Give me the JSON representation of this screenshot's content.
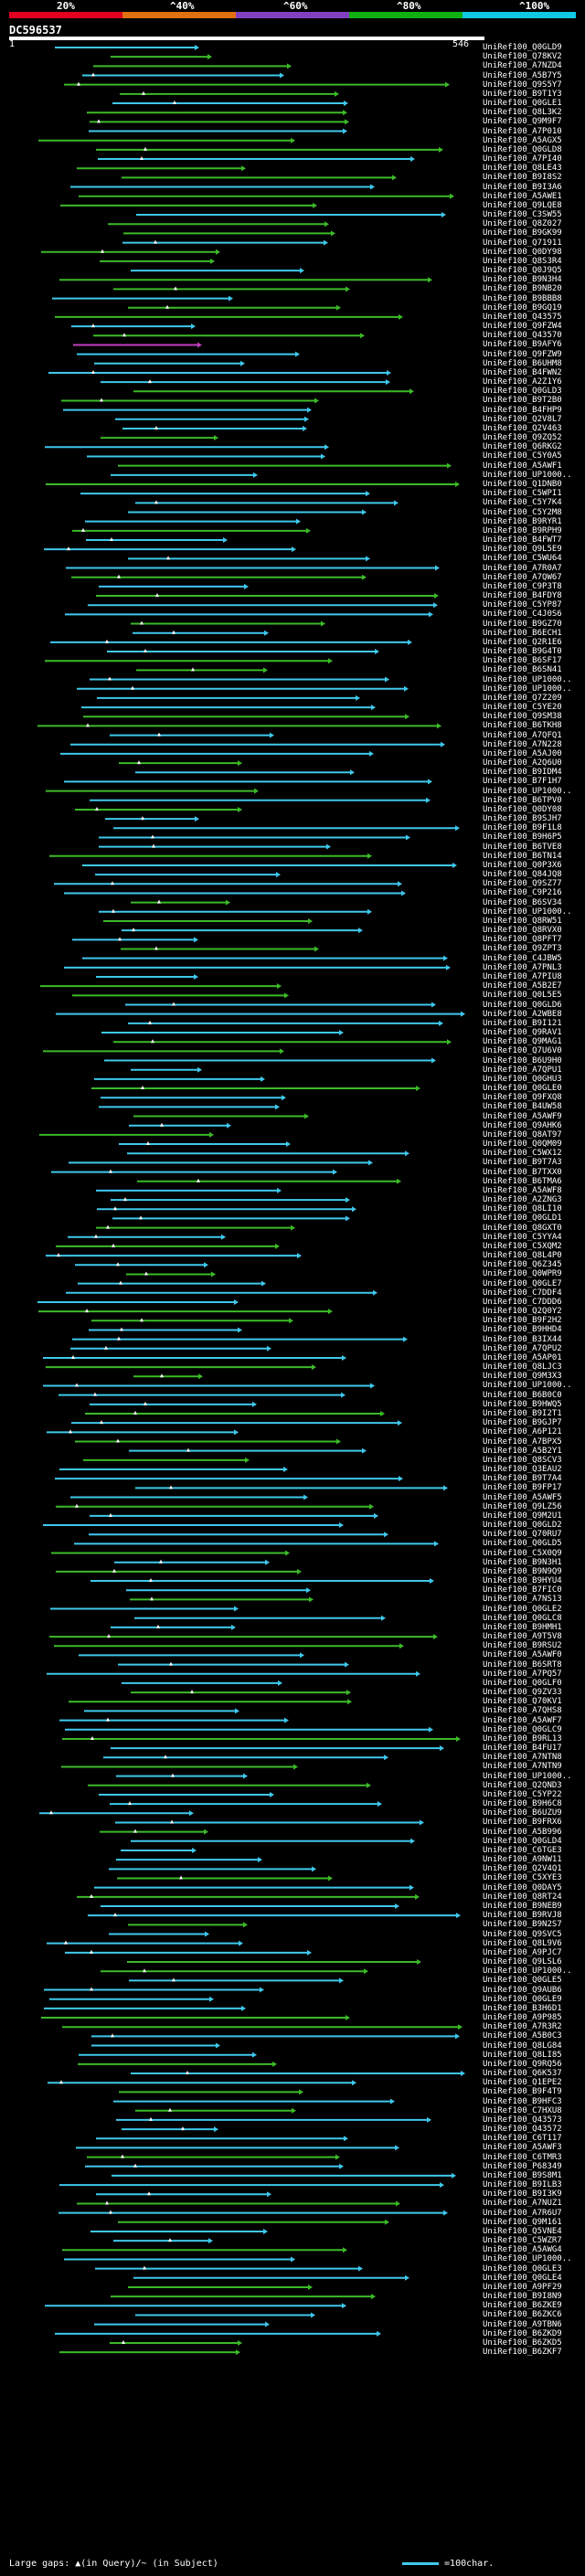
{
  "legend": {
    "stops": [
      {
        "label": "20%",
        "color": "#e00020"
      },
      {
        "label": "^40%",
        "color": "#e07010"
      },
      {
        "label": "^60%",
        "color": "#8040c0"
      },
      {
        "label": "^80%",
        "color": "#10b010"
      },
      {
        "label": "^100%",
        "color": "#10c8e0"
      }
    ]
  },
  "query": {
    "name": "DC596537",
    "start": "1",
    "end": "546"
  },
  "colors": {
    "cyan": "#3fc8ec",
    "green": "#3cba28",
    "magenta": "#c040c0"
  },
  "hits": [
    "UniRef100_Q0GLD9",
    "UniRef100_Q78KV2",
    "UniRef100_A7NZD4",
    "UniRef100_A5B7Y5",
    "UniRef100_Q9S5Y7",
    "UniRef100_B9T1Y3",
    "UniRef100_Q0GLE1",
    "UniRef100_Q8L3K2",
    "UniRef100_Q9M9F7",
    "UniRef100_A7P010",
    "UniRef100_A5AGX5",
    "UniRef100_Q0GLD8",
    "UniRef100_A7PI40",
    "UniRef100_Q8LE43",
    "UniRef100_B9I8S2",
    "UniRef100_B9I3A6",
    "UniRef100_A5AWE1",
    "UniRef100_Q9LQE8",
    "UniRef100_C3SW55",
    "UniRef100_Q8Z027",
    "UniRef100_B9GK99",
    "UniRef100_Q71911",
    "UniRef100_Q0DY98",
    "UniRef100_Q8S3R4",
    "UniRef100_Q0J9Q5",
    "UniRef100_B9N3H4",
    "UniRef100_B9NB20",
    "UniRef100_B9BBB8",
    "UniRef100_B9GQ19",
    "UniRef100_Q43575",
    "UniRef100_Q9FZW4",
    "UniRef100_Q43570",
    "UniRef100_B9AFY6",
    "UniRef100_Q9FZW9",
    "UniRef100_B6UHM8",
    "UniRef100_B4FWN2",
    "UniRef100_A2Z1Y6",
    "UniRef100_Q0GLD3",
    "UniRef100_B9T2B0",
    "UniRef100_B4FHP9",
    "UniRef100_Q2V8L7",
    "UniRef100_Q2V463",
    "UniRef100_Q9ZQ52",
    "UniRef100_Q6RKG2",
    "UniRef100_C5Y0A5",
    "UniRef100_A5AWF1",
    "UniRef100_UP1000..",
    "UniRef100_Q1DNB0",
    "UniRef100_C5WPI1",
    "UniRef100_C5Y7K4",
    "UniRef100_C5Y2M8",
    "UniRef100_B9RYR1",
    "UniRef100_B9RPH9",
    "UniRef100_B4FWT7",
    "UniRef100_Q9L5E9",
    "UniRef100_C5WU64",
    "UniRef100_A7R0A7",
    "UniRef100_A7QW67",
    "UniRef100_C9P3T8",
    "UniRef100_B4FDY8",
    "UniRef100_C5YP87",
    "UniRef100_C4J0S6",
    "UniRef100_B9GZ70",
    "UniRef100_B6ECH1",
    "UniRef100_Q2R1E6",
    "UniRef100_B9G4T0",
    "UniRef100_B6SF17",
    "UniRef100_B6SN41",
    "UniRef100_UP1000..",
    "UniRef100_UP1000..",
    "UniRef100_Q7Z209",
    "UniRef100_C5YE20",
    "UniRef100_Q9SM38",
    "UniRef100_B6TKH8",
    "UniRef100_A7QFQ1",
    "UniRef100_A7N228",
    "UniRef100_A5AJ00",
    "UniRef100_A2Q6U0",
    "UniRef100_B9IDM4",
    "UniRef100_B7F1H7",
    "UniRef100_UP1000..",
    "UniRef100_B6TPV0",
    "UniRef100_Q0DY08",
    "UniRef100_B9SJH7",
    "UniRef100_B9F1L8",
    "UniRef100_B9H6P5",
    "UniRef100_B6TVE8",
    "UniRef100_B6TN14",
    "UniRef100_Q0P3X6",
    "UniRef100_Q84JQ8",
    "UniRef100_Q9SZ77",
    "UniRef100_C9P216",
    "UniRef100_B6SV34",
    "UniRef100_UP1000..",
    "UniRef100_Q8RW51",
    "UniRef100_Q8RVX0",
    "UniRef100_Q8PFT7",
    "UniRef100_Q9ZPT3",
    "UniRef100_C4JBW5",
    "UniRef100_A7PNL3",
    "UniRef100_A7PIU8",
    "UniRef100_A5B2E7",
    "UniRef100_Q0L5E5",
    "UniRef100_Q0GLD6",
    "UniRef100_A2WBE8",
    "UniRef100_B9I121",
    "UniRef100_Q9RAV1",
    "UniRef100_Q9MAG1",
    "UniRef100_Q7U6V0",
    "UniRef100_B6U9H0",
    "UniRef100_A7QPU1",
    "UniRef100_Q0GHU3",
    "UniRef100_Q0GLE0",
    "UniRef100_Q9FXQ8",
    "UniRef100_B4UW58",
    "UniRef100_A5AWF9",
    "UniRef100_Q9AHK6",
    "UniRef100_Q8AT97",
    "UniRef100_Q0QM09",
    "UniRef100_C5WX12",
    "UniRef100_B9T7A3",
    "UniRef100_B7TXX0",
    "UniRef100_B6TMA6",
    "UniRef100_A5AWF8",
    "UniRef100_A2ZNG3",
    "UniRef100_Q8LI10",
    "UniRef100_Q0GLD1",
    "UniRef100_Q8GXT0",
    "UniRef100_C5YYA4",
    "UniRef100_C5XQM2",
    "UniRef100_Q8L4P0",
    "UniRef100_Q6Z345",
    "UniRef100_Q0WPR9",
    "UniRef100_Q0GLE7",
    "UniRef100_C7DDF4",
    "UniRef100_C7DDD6",
    "UniRef100_Q2Q0Y2",
    "UniRef100_B9F2H2",
    "UniRef100_B9HHD4",
    "UniRef100_B3IX44",
    "UniRef100_A7QPU2",
    "UniRef100_A5AP01",
    "UniRef100_Q8LJC3",
    "UniRef100_Q9M3X3",
    "UniRef100_UP1000..",
    "UniRef100_B6B0C0",
    "UniRef100_B9HWQ5",
    "UniRef100_B9I2T1",
    "UniRef100_B9GJP7",
    "UniRef100_A6P121",
    "UniRef100_A7BPX5",
    "UniRef100_A5B2Y1",
    "UniRef100_Q8SCV3",
    "UniRef100_Q3EAU2",
    "UniRef100_B9T7A4",
    "UniRef100_B9FP17",
    "UniRef100_A5AWF5",
    "UniRef100_Q9LZ56",
    "UniRef100_Q9M2U1",
    "UniRef100_Q0GLD2",
    "UniRef100_Q70RU7",
    "UniRef100_Q0GLD5",
    "UniRef100_C5X0Q9",
    "UniRef100_B9N3H1",
    "UniRef100_B9N9Q9",
    "UniRef100_B9HYU4",
    "UniRef100_B7FIC0",
    "UniRef100_A7NS13",
    "UniRef100_Q0GLE2",
    "UniRef100_Q0GLC8",
    "UniRef100_B9HMH1",
    "UniRef100_A9T5V8",
    "UniRef100_B9RSU2",
    "UniRef100_A5AWF0",
    "UniRef100_B6SRT8",
    "UniRef100_A7PQ57",
    "UniRef100_Q0GLF0",
    "UniRef100_Q9ZV33",
    "UniRef100_Q70KV1",
    "UniRef100_A7QHS8",
    "UniRef100_A5AWF7",
    "UniRef100_Q0GLC9",
    "UniRef100_B9RL13",
    "UniRef100_B4FU17",
    "UniRef100_A7NTN8",
    "UniRef100_A7NTN9",
    "UniRef100_UP1000..",
    "UniRef100_Q2QND3",
    "UniRef100_C5YP22",
    "UniRef100_B9H6C8",
    "UniRef100_B6UZU9",
    "UniRef100_B9FRX6",
    "UniRef100_A5B996",
    "UniRef100_Q0GLD4",
    "UniRef100_C6TGE3",
    "UniRef100_A9NW11",
    "UniRef100_Q2V4Q1",
    "UniRef100_C5XYE3",
    "UniRef100_Q0DAY5",
    "UniRef100_Q8RT24",
    "UniRef100_B9NEB9",
    "UniRef100_B9RVJ8",
    "UniRef100_B9N2S7",
    "UniRef100_Q9SVC5",
    "UniRef100_Q8L9V6",
    "UniRef100_A9PJC7",
    "UniRef100_Q9LSL6",
    "UniRef100_UP1000..",
    "UniRef100_Q0GLE5",
    "UniRef100_Q9AUB6",
    "UniRef100_Q0GLE9",
    "UniRef100_B3H6D1",
    "UniRef100_A9P985",
    "UniRef100_A7R3R2",
    "UniRef100_A5B0C3",
    "UniRef100_Q8LG84",
    "UniRef100_Q8LI85",
    "UniRef100_Q9RQ56",
    "UniRef100_Q6K537",
    "UniRef100_Q1EPE2",
    "UniRef100_B9F4T9",
    "UniRef100_B9HFC3",
    "UniRef100_C7HXU8",
    "UniRef100_Q43573",
    "UniRef100_Q43572",
    "UniRef100_C6T117",
    "UniRef100_A5AWF3",
    "UniRef100_C6TMR3",
    "UniRef100_P68349",
    "UniRef100_B9S8M1",
    "UniRef100_B9ILB3",
    "UniRef100_B9I3K9",
    "UniRef100_A7NUZ1",
    "UniRef100_A7R6U7",
    "UniRef100_Q9M161",
    "UniRef100_Q5VNE4",
    "UniRef100_C5WZR7",
    "UniRef100_A5AWG4",
    "UniRef100_UP1000..",
    "UniRef100_Q0GLE3",
    "UniRef100_Q0GLE4",
    "UniRef100_A9PF29",
    "UniRef100_B9I8N9",
    "UniRef100_B6ZKE9",
    "UniRef100_B6ZKC6",
    "UniRef100_A9TBN6",
    "UniRef100_B6ZKD9",
    "UniRef100_B6ZKD5",
    "UniRef100_B6ZKF7"
  ],
  "footer": {
    "gaps": "Large gaps: ▲(in Query)/~ (in Subject)",
    "scale": "=100char."
  }
}
